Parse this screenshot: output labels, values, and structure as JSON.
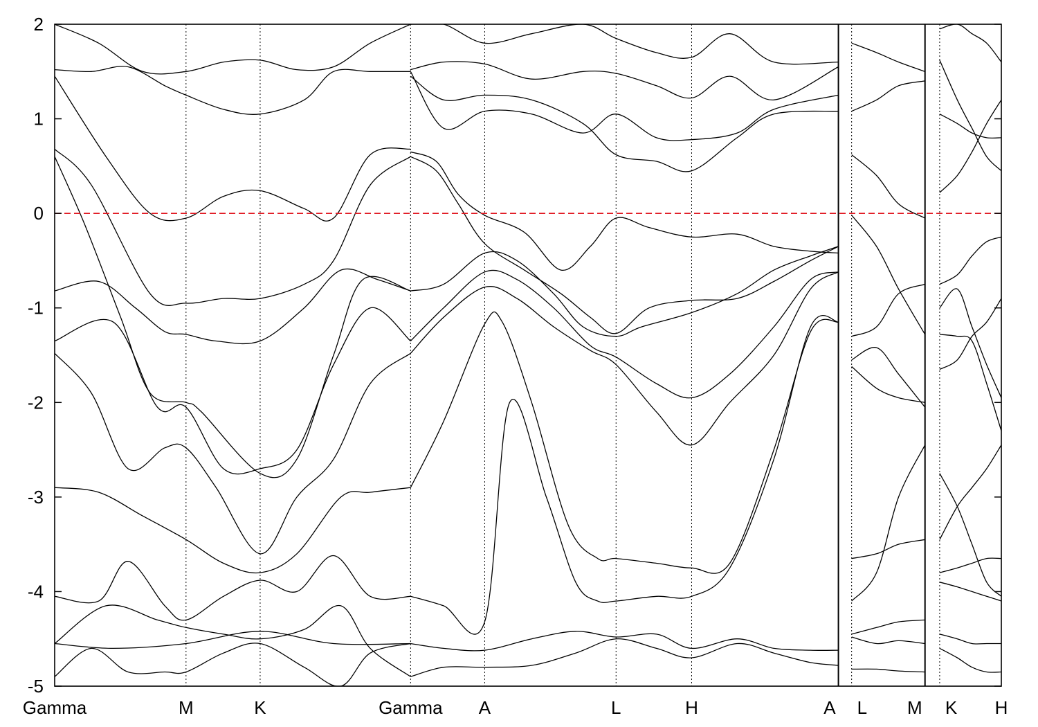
{
  "chart_data": {
    "type": "line",
    "title": "",
    "xlabel": "",
    "ylabel": "",
    "ylim": [
      -5,
      2
    ],
    "yticks": [
      -5,
      -4,
      -3,
      -2,
      -1,
      0,
      1,
      2
    ],
    "grid": false,
    "legend": "none",
    "x_range": [
      0,
      12.9
    ],
    "kpoints": [
      {
        "label": "Gamma",
        "x": 0.0
      },
      {
        "label": "M",
        "x": 1.79
      },
      {
        "label": "K",
        "x": 2.8
      },
      {
        "label": "Gamma",
        "x": 4.85
      },
      {
        "label": "A",
        "x": 5.86
      },
      {
        "label": "L",
        "x": 7.65
      },
      {
        "label": "H",
        "x": 8.68
      },
      {
        "label": "A",
        "x": 10.68
      },
      {
        "label": "L",
        "x": 10.86
      },
      {
        "label": "M",
        "x": 11.86
      },
      {
        "label": "K",
        "x": 12.06
      },
      {
        "label": "H",
        "x": 12.9
      }
    ],
    "segment_breaks": [
      10.68,
      11.86
    ],
    "fermi_level": {
      "y": 0,
      "color": "#e0141e",
      "style": "dashed"
    },
    "series": [
      {
        "color": "#000000",
        "x": [
          0.0,
          0.7,
          1.3,
          1.79,
          2.3,
          2.8,
          3.4,
          3.8,
          4.3,
          4.85
        ],
        "values": [
          1.45,
          0.6,
          0.0,
          -0.05,
          0.18,
          0.24,
          0.05,
          -0.05,
          0.62,
          0.68
        ]
      },
      {
        "color": "#000000",
        "x": [
          0.0,
          0.5,
          1.3,
          1.79,
          2.3,
          2.8,
          3.4,
          3.8,
          4.3,
          4.85
        ],
        "values": [
          0.68,
          0.3,
          -0.85,
          -0.95,
          -0.9,
          -0.9,
          -0.75,
          -0.5,
          0.3,
          0.6
        ]
      },
      {
        "color": "#000000",
        "x": [
          0.0,
          0.4,
          0.9,
          1.3,
          1.79,
          2.0,
          2.8,
          3.3,
          3.8,
          4.2,
          4.85
        ],
        "values": [
          0.6,
          -0.1,
          -1.1,
          -1.9,
          -2.0,
          -2.1,
          -2.75,
          -2.6,
          -1.5,
          -0.7,
          -0.82
        ]
      },
      {
        "color": "#000000",
        "x": [
          0.0,
          0.6,
          1.1,
          1.5,
          1.79,
          2.2,
          2.8,
          3.4,
          3.9,
          4.4,
          4.85
        ],
        "values": [
          -0.82,
          -0.72,
          -1.0,
          -1.25,
          -1.28,
          -1.35,
          -1.35,
          -1.0,
          -0.6,
          -0.7,
          -0.82
        ]
      },
      {
        "color": "#000000",
        "x": [
          0.0,
          0.8,
          1.4,
          1.79,
          2.3,
          2.8,
          3.3,
          3.8,
          4.3,
          4.85
        ],
        "values": [
          -1.35,
          -1.15,
          -2.05,
          -2.05,
          -2.7,
          -2.7,
          -2.5,
          -1.6,
          -1.0,
          -1.35
        ]
      },
      {
        "color": "#000000",
        "x": [
          0.0,
          0.5,
          1.0,
          1.5,
          1.79,
          2.2,
          2.8,
          3.3,
          3.8,
          4.3,
          4.85
        ],
        "values": [
          -1.48,
          -1.9,
          -2.7,
          -2.48,
          -2.48,
          -2.9,
          -3.6,
          -3.0,
          -2.6,
          -1.8,
          -1.48
        ]
      },
      {
        "color": "#000000",
        "x": [
          0.0,
          0.6,
          1.2,
          1.79,
          2.3,
          2.8,
          3.3,
          3.9,
          4.3,
          4.85
        ],
        "values": [
          -2.9,
          -2.95,
          -3.2,
          -3.45,
          -3.7,
          -3.8,
          -3.6,
          -3.0,
          -2.95,
          -2.9
        ]
      },
      {
        "color": "#000000",
        "x": [
          0.0,
          0.6,
          1.0,
          1.5,
          1.79,
          2.3,
          2.8,
          3.3,
          3.8,
          4.3,
          4.85
        ],
        "values": [
          -4.05,
          -4.1,
          -3.68,
          -4.15,
          -4.3,
          -4.05,
          -3.88,
          -4.0,
          -3.62,
          -4.05,
          -4.05
        ]
      },
      {
        "color": "#000000",
        "x": [
          0.0,
          0.7,
          1.4,
          1.79,
          2.3,
          2.8,
          3.4,
          3.9,
          4.3,
          4.85
        ],
        "values": [
          -4.55,
          -4.15,
          -4.3,
          -4.38,
          -4.45,
          -4.5,
          -4.4,
          -4.15,
          -4.6,
          -4.9
        ]
      },
      {
        "color": "#000000",
        "x": [
          0.0,
          0.8,
          1.79,
          2.8,
          3.8,
          4.85
        ],
        "values": [
          -4.55,
          -4.6,
          -4.55,
          -4.42,
          -4.55,
          -4.55
        ]
      },
      {
        "color": "#000000",
        "x": [
          0.0,
          0.5,
          1.0,
          1.5,
          1.79,
          2.3,
          2.8,
          3.4,
          3.9,
          4.3,
          4.85
        ],
        "values": [
          -4.9,
          -4.6,
          -4.85,
          -4.85,
          -4.85,
          -4.65,
          -4.55,
          -4.8,
          -5.0,
          -4.65,
          -4.55
        ]
      },
      {
        "color": "#000000",
        "x": [
          0.0,
          0.5,
          1.0,
          1.5,
          1.79,
          2.3,
          2.8,
          3.4,
          3.8,
          4.3,
          4.85
        ],
        "values": [
          1.52,
          1.5,
          1.55,
          1.35,
          1.25,
          1.1,
          1.05,
          1.2,
          1.5,
          1.5,
          1.5
        ]
      },
      {
        "color": "#000000",
        "x": [
          0.0,
          0.6,
          1.2,
          1.79,
          2.3,
          2.8,
          3.3,
          3.8,
          4.3,
          4.85
        ],
        "values": [
          2.0,
          1.8,
          1.5,
          1.5,
          1.6,
          1.62,
          1.52,
          1.55,
          1.8,
          2.0
        ]
      },
      {
        "color": "#000000",
        "x": [
          4.85,
          5.2,
          5.5,
          5.86,
          6.4,
          6.9,
          7.3,
          7.65,
          8.1,
          8.68,
          9.3,
          9.8,
          10.3,
          10.68
        ],
        "values": [
          0.6,
          0.45,
          0.1,
          -0.32,
          -0.6,
          -0.85,
          -1.1,
          -1.27,
          -1.0,
          -0.92,
          -0.9,
          -0.72,
          -0.5,
          -0.35
        ]
      },
      {
        "color": "#000000",
        "x": [
          4.85,
          5.2,
          5.5,
          5.86,
          6.4,
          6.9,
          7.3,
          7.65,
          8.1,
          8.68,
          9.3,
          9.8,
          10.3,
          10.68
        ],
        "values": [
          0.65,
          0.55,
          0.2,
          -0.02,
          -0.2,
          -0.6,
          -0.35,
          -0.05,
          -0.15,
          -0.25,
          -0.22,
          -0.35,
          -0.4,
          -0.42
        ]
      },
      {
        "color": "#000000",
        "x": [
          4.85,
          5.3,
          5.86,
          6.3,
          6.8,
          7.2,
          7.65,
          8.0,
          8.68,
          9.3,
          9.8,
          10.3,
          10.68
        ],
        "values": [
          -0.82,
          -0.75,
          -0.42,
          -0.5,
          -0.85,
          -1.2,
          -1.3,
          -1.2,
          -1.05,
          -0.85,
          -0.6,
          -0.45,
          -0.35
        ]
      },
      {
        "color": "#000000",
        "x": [
          4.85,
          5.3,
          5.86,
          6.3,
          6.8,
          7.3,
          7.65,
          8.2,
          8.68,
          9.2,
          9.8,
          10.3,
          10.68
        ],
        "values": [
          -1.35,
          -1.0,
          -0.62,
          -0.7,
          -1.0,
          -1.4,
          -1.52,
          -1.8,
          -1.95,
          -1.7,
          -1.2,
          -0.7,
          -0.62
        ]
      },
      {
        "color": "#000000",
        "x": [
          4.85,
          5.3,
          5.86,
          6.3,
          6.8,
          7.3,
          7.65,
          8.2,
          8.68,
          9.2,
          9.8,
          10.3,
          10.68
        ],
        "values": [
          -1.48,
          -1.1,
          -0.78,
          -0.9,
          -1.2,
          -1.45,
          -1.6,
          -2.1,
          -2.45,
          -2.0,
          -1.5,
          -0.8,
          -0.62
        ]
      },
      {
        "color": "#000000",
        "x": [
          4.85,
          5.3,
          5.86,
          6.1,
          6.5,
          7.0,
          7.4,
          7.65,
          8.2,
          8.68,
          9.2,
          9.8,
          10.3,
          10.68
        ],
        "values": [
          -2.9,
          -2.2,
          -1.17,
          -1.15,
          -2.0,
          -3.3,
          -3.65,
          -3.65,
          -3.7,
          -3.75,
          -3.7,
          -2.5,
          -1.25,
          -1.15
        ]
      },
      {
        "color": "#000000",
        "x": [
          4.85,
          5.3,
          5.86,
          6.2,
          6.7,
          7.1,
          7.4,
          7.65,
          8.2,
          8.68,
          9.2,
          9.8,
          10.3,
          10.68
        ],
        "values": [
          -4.05,
          -4.15,
          -4.32,
          -2.0,
          -3.0,
          -3.9,
          -4.1,
          -4.1,
          -4.05,
          -4.05,
          -3.75,
          -2.6,
          -1.2,
          -1.15
        ]
      },
      {
        "color": "#000000",
        "x": [
          4.85,
          5.3,
          5.86,
          6.5,
          7.1,
          7.65,
          8.2,
          8.68,
          9.3,
          9.8,
          10.3,
          10.68
        ],
        "values": [
          -4.55,
          -4.6,
          -4.62,
          -4.5,
          -4.42,
          -4.48,
          -4.45,
          -4.6,
          -4.5,
          -4.6,
          -4.62,
          -4.62
        ]
      },
      {
        "color": "#000000",
        "x": [
          4.85,
          5.3,
          5.86,
          6.5,
          7.1,
          7.65,
          8.2,
          8.68,
          9.3,
          9.8,
          10.3,
          10.68
        ],
        "values": [
          -4.9,
          -4.8,
          -4.8,
          -4.78,
          -4.65,
          -4.5,
          -4.6,
          -4.7,
          -4.55,
          -4.65,
          -4.75,
          -4.78
        ]
      },
      {
        "color": "#000000",
        "x": [
          4.85,
          5.3,
          5.86,
          6.5,
          7.2,
          7.65,
          8.2,
          8.68,
          9.3,
          9.8,
          10.68
        ],
        "values": [
          1.45,
          1.2,
          1.25,
          1.2,
          0.95,
          0.62,
          0.55,
          0.45,
          0.8,
          1.05,
          1.08
        ]
      },
      {
        "color": "#000000",
        "x": [
          4.85,
          5.3,
          5.86,
          6.5,
          7.2,
          7.65,
          8.2,
          8.68,
          9.3,
          9.8,
          10.68
        ],
        "values": [
          1.5,
          0.9,
          1.08,
          1.05,
          0.85,
          1.05,
          0.8,
          0.78,
          0.85,
          1.1,
          1.25
        ]
      },
      {
        "color": "#000000",
        "x": [
          4.85,
          5.3,
          5.86,
          6.5,
          7.2,
          7.65,
          8.2,
          8.68,
          9.2,
          9.8,
          10.68
        ],
        "values": [
          1.52,
          1.6,
          1.58,
          1.42,
          1.5,
          1.48,
          1.35,
          1.22,
          1.45,
          1.2,
          1.55
        ]
      },
      {
        "color": "#000000",
        "x": [
          4.85,
          5.3,
          5.86,
          6.5,
          7.2,
          7.65,
          8.2,
          8.68,
          9.2,
          9.8,
          10.68
        ],
        "values": [
          2.0,
          2.0,
          1.8,
          1.9,
          2.0,
          1.85,
          1.7,
          1.65,
          1.9,
          1.6,
          1.6
        ]
      },
      {
        "color": "#000000",
        "x": [
          10.86,
          11.2,
          11.5,
          11.86
        ],
        "values": [
          -0.02,
          -0.35,
          -0.8,
          -1.28
        ]
      },
      {
        "color": "#000000",
        "x": [
          10.86,
          11.2,
          11.5,
          11.86
        ],
        "values": [
          0.62,
          0.4,
          0.1,
          -0.05
        ]
      },
      {
        "color": "#000000",
        "x": [
          10.86,
          11.2,
          11.5,
          11.86
        ],
        "values": [
          -1.3,
          -1.2,
          -0.85,
          -0.75
        ]
      },
      {
        "color": "#000000",
        "x": [
          10.86,
          11.2,
          11.5,
          11.86
        ],
        "values": [
          -1.55,
          -1.42,
          -1.7,
          -2.05
        ]
      },
      {
        "color": "#000000",
        "x": [
          10.86,
          11.2,
          11.5,
          11.86
        ],
        "values": [
          -1.62,
          -1.85,
          -1.95,
          -2.0
        ]
      },
      {
        "color": "#000000",
        "x": [
          10.86,
          11.2,
          11.5,
          11.86
        ],
        "values": [
          -3.65,
          -3.6,
          -3.5,
          -3.45
        ]
      },
      {
        "color": "#000000",
        "x": [
          10.86,
          11.2,
          11.5,
          11.86
        ],
        "values": [
          -4.1,
          -3.8,
          -3.0,
          -2.45
        ]
      },
      {
        "color": "#000000",
        "x": [
          10.86,
          11.2,
          11.5,
          11.86
        ],
        "values": [
          -4.45,
          -4.38,
          -4.32,
          -4.3
        ]
      },
      {
        "color": "#000000",
        "x": [
          10.86,
          11.2,
          11.5,
          11.86
        ],
        "values": [
          -4.48,
          -4.55,
          -4.52,
          -4.55
        ]
      },
      {
        "color": "#000000",
        "x": [
          10.86,
          11.2,
          11.5,
          11.86
        ],
        "values": [
          -4.82,
          -4.82,
          -4.84,
          -4.85
        ]
      },
      {
        "color": "#000000",
        "x": [
          10.86,
          11.2,
          11.5,
          11.86
        ],
        "values": [
          1.08,
          1.2,
          1.35,
          1.4
        ]
      },
      {
        "color": "#000000",
        "x": [
          10.86,
          11.2,
          11.5,
          11.86
        ],
        "values": [
          1.8,
          1.7,
          1.6,
          1.5
        ]
      },
      {
        "color": "#000000",
        "x": [
          12.06,
          12.3,
          12.5,
          12.7,
          12.9
        ],
        "values": [
          -0.75,
          -0.65,
          -0.45,
          -0.3,
          -0.25
        ]
      },
      {
        "color": "#000000",
        "x": [
          12.06,
          12.3,
          12.5,
          12.7,
          12.9
        ],
        "values": [
          -1.0,
          -0.8,
          -1.2,
          -1.6,
          -1.95
        ]
      },
      {
        "color": "#000000",
        "x": [
          12.06,
          12.3,
          12.5,
          12.7,
          12.9
        ],
        "values": [
          -1.28,
          -1.3,
          -1.35,
          -1.8,
          -2.3
        ]
      },
      {
        "color": "#000000",
        "x": [
          12.06,
          12.3,
          12.5,
          12.7,
          12.9
        ],
        "values": [
          -1.65,
          -1.55,
          -1.3,
          -1.15,
          -0.9
        ]
      },
      {
        "color": "#000000",
        "x": [
          12.06,
          12.3,
          12.5,
          12.7,
          12.9
        ],
        "values": [
          -2.75,
          -3.1,
          -3.5,
          -3.9,
          -4.05
        ]
      },
      {
        "color": "#000000",
        "x": [
          12.06,
          12.3,
          12.5,
          12.7,
          12.9
        ],
        "values": [
          -3.45,
          -3.1,
          -2.9,
          -2.7,
          -2.45
        ]
      },
      {
        "color": "#000000",
        "x": [
          12.06,
          12.3,
          12.5,
          12.7,
          12.9
        ],
        "values": [
          -3.8,
          -3.75,
          -3.7,
          -3.65,
          -3.65
        ]
      },
      {
        "color": "#000000",
        "x": [
          12.06,
          12.3,
          12.5,
          12.7,
          12.9
        ],
        "values": [
          -3.9,
          -3.95,
          -4.0,
          -4.05,
          -4.1
        ]
      },
      {
        "color": "#000000",
        "x": [
          12.06,
          12.3,
          12.5,
          12.7,
          12.9
        ],
        "values": [
          -4.45,
          -4.5,
          -4.55,
          -4.55,
          -4.55
        ]
      },
      {
        "color": "#000000",
        "x": [
          12.06,
          12.3,
          12.5,
          12.7,
          12.9
        ],
        "values": [
          -4.6,
          -4.7,
          -4.8,
          -4.85,
          -4.85
        ]
      },
      {
        "color": "#000000",
        "x": [
          12.06,
          12.3,
          12.5,
          12.7,
          12.9
        ],
        "values": [
          0.22,
          0.4,
          0.65,
          0.95,
          1.2
        ]
      },
      {
        "color": "#000000",
        "x": [
          12.06,
          12.3,
          12.5,
          12.7,
          12.9
        ],
        "values": [
          1.05,
          0.95,
          0.85,
          0.8,
          0.8
        ]
      },
      {
        "color": "#000000",
        "x": [
          12.06,
          12.3,
          12.5,
          12.7,
          12.9
        ],
        "values": [
          1.62,
          1.2,
          0.9,
          0.6,
          0.45
        ]
      },
      {
        "color": "#000000",
        "x": [
          12.06,
          12.3,
          12.5,
          12.7,
          12.9
        ],
        "values": [
          1.95,
          2.0,
          1.9,
          1.8,
          1.6
        ]
      }
    ]
  }
}
